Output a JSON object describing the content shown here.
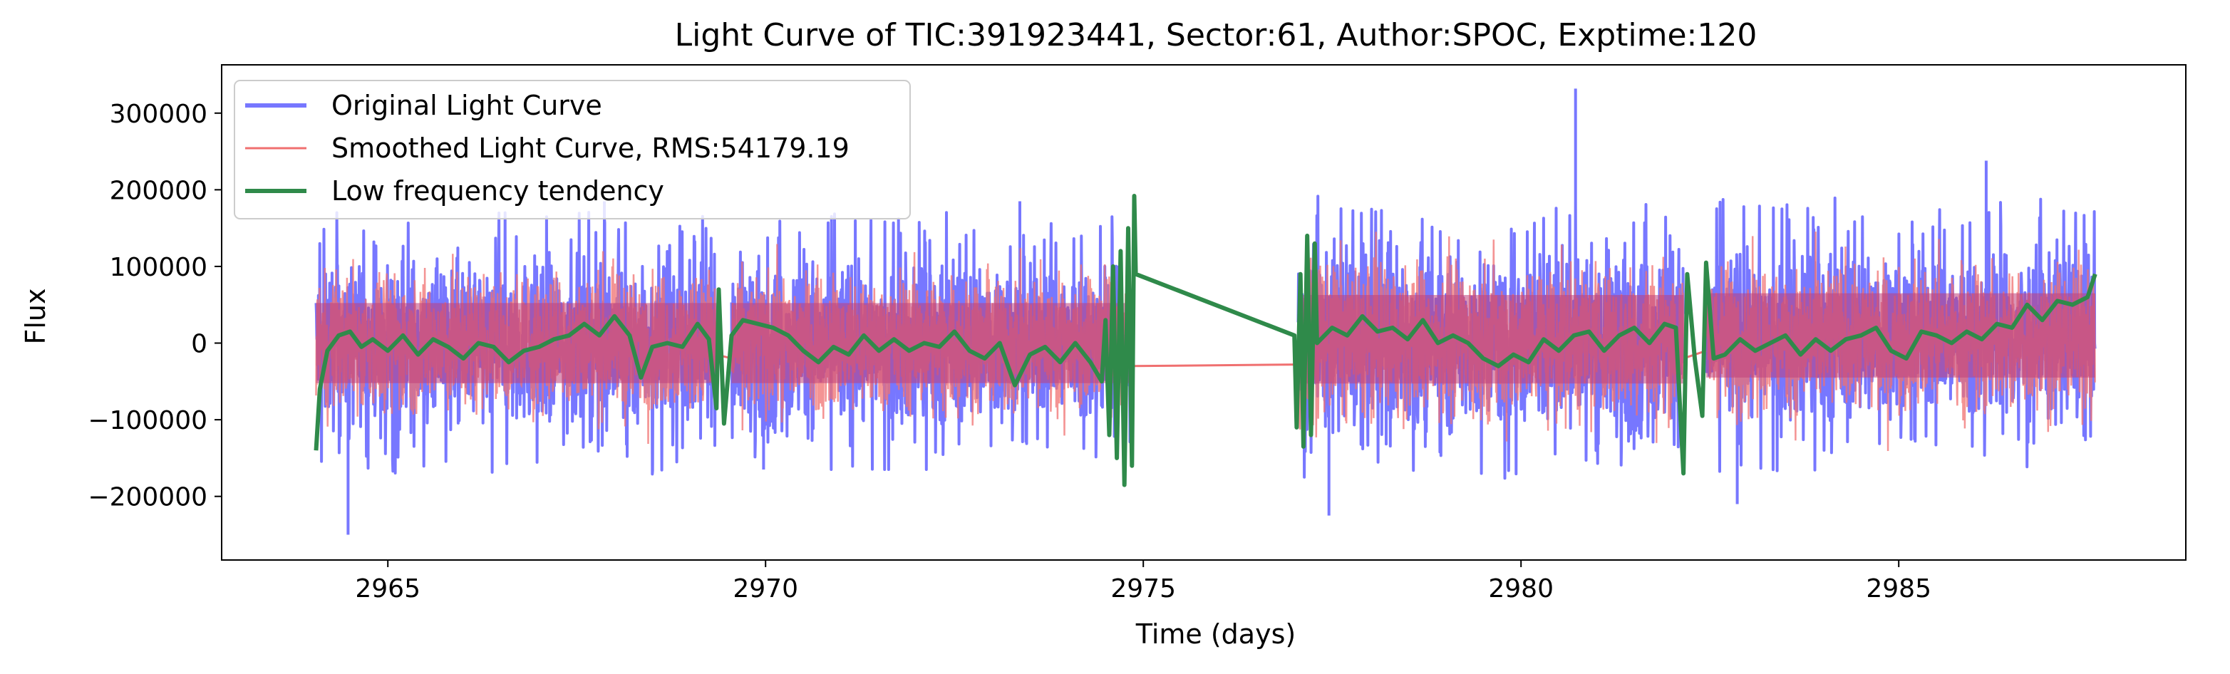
{
  "chart_data": {
    "type": "line",
    "title": "Light Curve of TIC:391923441, Sector:61, Author:SPOC, Exptime:120",
    "xlabel": "Time (days)",
    "ylabel": "Flux",
    "xlim": [
      2962.8,
      2988.8
    ],
    "ylim": [
      -283000,
      363000
    ],
    "x_ticks": [
      2965,
      2970,
      2975,
      2980,
      2985
    ],
    "x_tick_labels": [
      "2965",
      "2970",
      "2975",
      "2980",
      "2985"
    ],
    "y_ticks": [
      -200000,
      -100000,
      0,
      100000,
      200000,
      300000
    ],
    "y_tick_labels": [
      "−200000",
      "−100000",
      "0",
      "100000",
      "200000",
      "300000"
    ],
    "grid": false,
    "legend_position": "upper left",
    "series": [
      {
        "name": "Original Light Curve",
        "color": "#7777ff",
        "segments": [
          {
            "x_start": 2964.05,
            "x_end": 2969.35,
            "center": 0,
            "amplitude": 95000,
            "min": -250000,
            "max": 185000
          },
          {
            "x_start": 2969.55,
            "x_end": 2974.85,
            "center": 0,
            "amplitude": 95000,
            "min": -165000,
            "max": 185000
          },
          {
            "x_start": 2977.05,
            "x_end": 2982.15,
            "center": 5000,
            "amplitude": 105000,
            "min": -225000,
            "max": 332000
          },
          {
            "x_start": 2982.45,
            "x_end": 2987.6,
            "center": 10000,
            "amplitude": 100000,
            "min": -210000,
            "max": 238000
          }
        ]
      },
      {
        "name": "Smoothed Light Curve, RMS:54179.19",
        "color": "#f07070",
        "segments": [
          {
            "x_start": 2964.05,
            "x_end": 2969.35,
            "center": 0,
            "amplitude": 80000
          },
          {
            "x_start": 2969.55,
            "x_end": 2974.85,
            "center": 0,
            "amplitude": 80000
          },
          {
            "x_start": 2977.05,
            "x_end": 2982.15,
            "center": 5000,
            "amplitude": 90000
          },
          {
            "x_start": 2982.45,
            "x_end": 2987.6,
            "center": 5000,
            "amplitude": 85000
          }
        ],
        "bridges": [
          {
            "x": [
              2969.35,
              2969.55
            ],
            "y": [
              -15000,
              -20000
            ]
          },
          {
            "x": [
              2974.85,
              2977.05
            ],
            "y": [
              -30000,
              -28000
            ]
          },
          {
            "x": [
              2982.15,
              2982.45
            ],
            "y": [
              -20000,
              -10000
            ]
          }
        ]
      },
      {
        "name": "Low frequency tendency",
        "color": "#2f8a4a",
        "points": [
          [
            2964.05,
            -140000
          ],
          [
            2964.1,
            -60000
          ],
          [
            2964.2,
            -10000
          ],
          [
            2964.35,
            10000
          ],
          [
            2964.5,
            15000
          ],
          [
            2964.65,
            -5000
          ],
          [
            2964.8,
            5000
          ],
          [
            2965.0,
            -10000
          ],
          [
            2965.2,
            10000
          ],
          [
            2965.4,
            -15000
          ],
          [
            2965.6,
            5000
          ],
          [
            2965.8,
            -5000
          ],
          [
            2966.0,
            -20000
          ],
          [
            2966.2,
            0
          ],
          [
            2966.4,
            -5000
          ],
          [
            2966.6,
            -25000
          ],
          [
            2966.8,
            -10000
          ],
          [
            2967.0,
            -5000
          ],
          [
            2967.2,
            5000
          ],
          [
            2967.4,
            10000
          ],
          [
            2967.6,
            25000
          ],
          [
            2967.8,
            10000
          ],
          [
            2968.0,
            35000
          ],
          [
            2968.2,
            10000
          ],
          [
            2968.35,
            -45000
          ],
          [
            2968.5,
            -5000
          ],
          [
            2968.7,
            0
          ],
          [
            2968.9,
            -5000
          ],
          [
            2969.1,
            25000
          ],
          [
            2969.25,
            5000
          ],
          [
            2969.35,
            -85000
          ],
          [
            2969.38,
            70000
          ],
          [
            2969.45,
            -105000
          ],
          [
            2969.55,
            10000
          ],
          [
            2969.7,
            30000
          ],
          [
            2969.9,
            25000
          ],
          [
            2970.1,
            20000
          ],
          [
            2970.3,
            10000
          ],
          [
            2970.5,
            -10000
          ],
          [
            2970.7,
            -25000
          ],
          [
            2970.9,
            -5000
          ],
          [
            2971.1,
            -15000
          ],
          [
            2971.3,
            10000
          ],
          [
            2971.5,
            -10000
          ],
          [
            2971.7,
            5000
          ],
          [
            2971.9,
            -10000
          ],
          [
            2972.1,
            0
          ],
          [
            2972.3,
            -5000
          ],
          [
            2972.5,
            15000
          ],
          [
            2972.7,
            -10000
          ],
          [
            2972.9,
            -20000
          ],
          [
            2973.1,
            0
          ],
          [
            2973.3,
            -55000
          ],
          [
            2973.5,
            -15000
          ],
          [
            2973.7,
            -5000
          ],
          [
            2973.9,
            -25000
          ],
          [
            2974.1,
            0
          ],
          [
            2974.3,
            -25000
          ],
          [
            2974.45,
            -50000
          ],
          [
            2974.5,
            30000
          ],
          [
            2974.55,
            -120000
          ],
          [
            2974.6,
            100000
          ],
          [
            2974.65,
            -150000
          ],
          [
            2974.7,
            120000
          ],
          [
            2974.75,
            -185000
          ],
          [
            2974.8,
            150000
          ],
          [
            2974.85,
            -160000
          ],
          [
            2974.88,
            192000
          ],
          [
            2974.9,
            90000
          ],
          [
            2977.0,
            10000
          ],
          [
            2977.03,
            -110000
          ],
          [
            2977.08,
            90000
          ],
          [
            2977.12,
            -135000
          ],
          [
            2977.17,
            140000
          ],
          [
            2977.22,
            -120000
          ],
          [
            2977.27,
            130000
          ],
          [
            2977.3,
            0
          ],
          [
            2977.5,
            20000
          ],
          [
            2977.7,
            10000
          ],
          [
            2977.9,
            35000
          ],
          [
            2978.1,
            15000
          ],
          [
            2978.3,
            20000
          ],
          [
            2978.5,
            5000
          ],
          [
            2978.7,
            30000
          ],
          [
            2978.9,
            0
          ],
          [
            2979.1,
            10000
          ],
          [
            2979.3,
            0
          ],
          [
            2979.5,
            -20000
          ],
          [
            2979.7,
            -30000
          ],
          [
            2979.9,
            -15000
          ],
          [
            2980.1,
            -25000
          ],
          [
            2980.3,
            5000
          ],
          [
            2980.5,
            -10000
          ],
          [
            2980.7,
            10000
          ],
          [
            2980.9,
            15000
          ],
          [
            2981.1,
            -10000
          ],
          [
            2981.3,
            10000
          ],
          [
            2981.5,
            20000
          ],
          [
            2981.7,
            0
          ],
          [
            2981.9,
            25000
          ],
          [
            2982.05,
            20000
          ],
          [
            2982.15,
            -170000
          ],
          [
            2982.2,
            90000
          ],
          [
            2982.3,
            -20000
          ],
          [
            2982.4,
            -95000
          ],
          [
            2982.45,
            105000
          ],
          [
            2982.55,
            -20000
          ],
          [
            2982.7,
            -15000
          ],
          [
            2982.9,
            5000
          ],
          [
            2983.1,
            -10000
          ],
          [
            2983.3,
            0
          ],
          [
            2983.5,
            10000
          ],
          [
            2983.7,
            -15000
          ],
          [
            2983.9,
            5000
          ],
          [
            2984.1,
            -10000
          ],
          [
            2984.3,
            5000
          ],
          [
            2984.5,
            10000
          ],
          [
            2984.7,
            20000
          ],
          [
            2984.9,
            -10000
          ],
          [
            2985.1,
            -20000
          ],
          [
            2985.3,
            15000
          ],
          [
            2985.5,
            10000
          ],
          [
            2985.7,
            0
          ],
          [
            2985.9,
            15000
          ],
          [
            2986.1,
            5000
          ],
          [
            2986.3,
            25000
          ],
          [
            2986.5,
            20000
          ],
          [
            2986.7,
            50000
          ],
          [
            2986.9,
            30000
          ],
          [
            2987.1,
            55000
          ],
          [
            2987.3,
            50000
          ],
          [
            2987.5,
            60000
          ],
          [
            2987.6,
            90000
          ]
        ]
      }
    ],
    "legend": [
      {
        "label": "Original Light Curve",
        "color": "#7777ff"
      },
      {
        "label": "Smoothed Light Curve, RMS:54179.19",
        "color": "#f07070"
      },
      {
        "label": "Low frequency tendency",
        "color": "#2f8a4a"
      }
    ]
  }
}
